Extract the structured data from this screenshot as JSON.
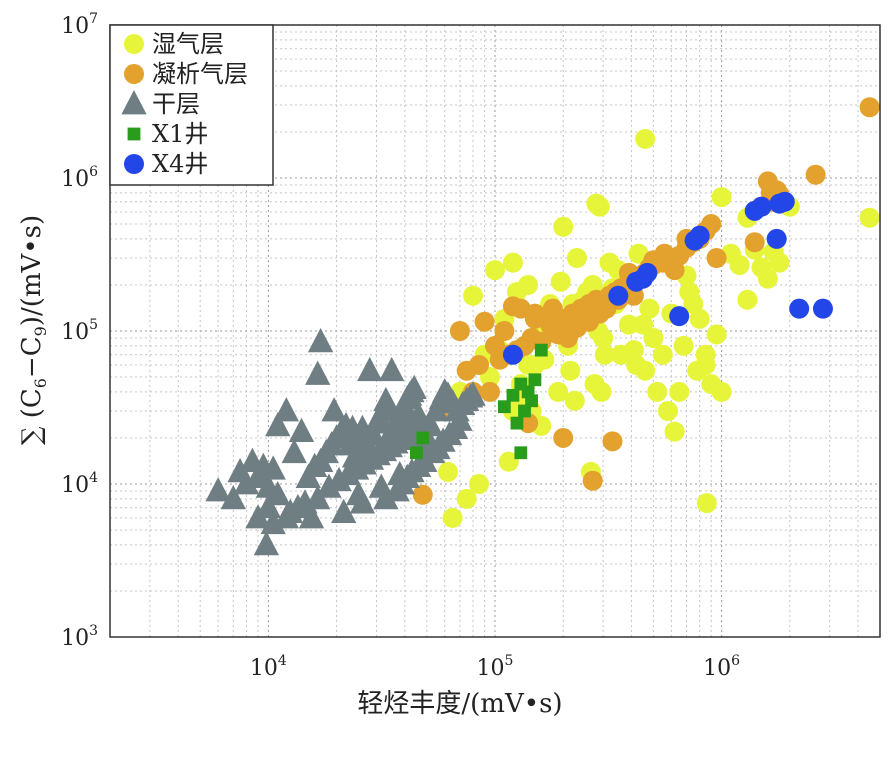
{
  "chart_data": {
    "type": "scatter",
    "title": "",
    "xlabel": "轻烃丰度/(mV•s)",
    "ylabel_parts": {
      "prefix": "∑ (C",
      "sub1": "6",
      "dash": "−C",
      "sub2": "9",
      "suffix": ")/(mV•s)"
    },
    "x_scale": "log",
    "y_scale": "log",
    "xlim": [
      2000,
      5000000
    ],
    "ylim": [
      1000,
      10000000
    ],
    "x_ticks": [
      {
        "base": "10",
        "exp": "4"
      },
      {
        "base": "10",
        "exp": "5"
      },
      {
        "base": "10",
        "exp": "6"
      }
    ],
    "x_tick_values": [
      10000,
      100000,
      1000000
    ],
    "y_ticks": [
      {
        "base": "10",
        "exp": "3"
      },
      {
        "base": "10",
        "exp": "4"
      },
      {
        "base": "10",
        "exp": "5"
      },
      {
        "base": "10",
        "exp": "6"
      },
      {
        "base": "10",
        "exp": "7"
      }
    ],
    "y_tick_values": [
      1000,
      10000,
      100000,
      1000000,
      10000000
    ],
    "grid": true,
    "legend_position": "top-left",
    "series": [
      {
        "name": "湿气层",
        "marker": "circle",
        "color": "#e6f53a",
        "x": [
          62000,
          70000,
          80000,
          90000,
          100000,
          110000,
          120000,
          130000,
          140000,
          150000,
          160000,
          170000,
          180000,
          190000,
          200000,
          210000,
          220000,
          230000,
          250000,
          270000,
          290000,
          300000,
          320000,
          340000,
          360000,
          380000,
          400000,
          420000,
          450000,
          480000,
          500000,
          550000,
          600000,
          650000,
          700000,
          750000,
          800000,
          850000,
          900000,
          950000,
          1000000,
          1100000,
          1200000,
          1300000,
          1400000,
          1500000,
          1600000,
          1700000,
          1800000,
          2000000,
          4500000,
          95000,
          105000,
          115000,
          125000,
          135000,
          145000,
          155000,
          165000,
          175000,
          185000,
          195000,
          205000,
          215000,
          225000,
          235000,
          245000,
          255000,
          265000,
          275000,
          285000,
          295000,
          305000,
          330000,
          350000,
          370000,
          390000,
          410000,
          430000,
          460000,
          520000,
          580000,
          620000,
          680000,
          720000,
          780000,
          850000,
          65000,
          75000,
          85000,
          160000,
          120000,
          140000,
          280000,
          460000,
          1000000,
          860000,
          1300000
        ],
        "y": [
          12000,
          40000,
          170000,
          70000,
          250000,
          120000,
          280000,
          45000,
          200000,
          60000,
          110000,
          95000,
          130000,
          40000,
          480000,
          80000,
          150000,
          300000,
          120000,
          200000,
          650000,
          90000,
          280000,
          150000,
          70000,
          220000,
          180000,
          60000,
          110000,
          140000,
          90000,
          70000,
          130000,
          40000,
          230000,
          150000,
          120000,
          60000,
          45000,
          95000,
          750000,
          320000,
          270000,
          550000,
          340000,
          260000,
          220000,
          330000,
          280000,
          650000,
          550000,
          50000,
          75000,
          14000,
          180000,
          35000,
          30000,
          90000,
          65000,
          150000,
          120000,
          210000,
          100000,
          55000,
          35000,
          130000,
          160000,
          180000,
          12000,
          45000,
          100000,
          40000,
          70000,
          190000,
          250000,
          170000,
          110000,
          75000,
          320000,
          55000,
          40000,
          30000,
          22000,
          80000,
          180000,
          55000,
          70000,
          6000,
          8000,
          10000,
          24000,
          30000,
          60000,
          680000,
          1800000,
          40000,
          7500,
          160000
        ]
      },
      {
        "name": "凝析气层",
        "marker": "circle",
        "color": "#e3a12e",
        "x": [
          48000,
          62000,
          75000,
          85000,
          95000,
          105000,
          115000,
          125000,
          135000,
          145000,
          160000,
          175000,
          190000,
          200000,
          210000,
          220000,
          230000,
          240000,
          250000,
          260000,
          270000,
          280000,
          300000,
          320000,
          340000,
          360000,
          380000,
          400000,
          420000,
          440000,
          460000,
          480000,
          500000,
          550000,
          600000,
          650000,
          700000,
          750000,
          800000,
          850000,
          900000,
          1500000,
          1600000,
          1700000,
          1800000,
          2600000,
          4500000,
          330000,
          270000,
          200000,
          180000,
          150000,
          140000,
          130000,
          120000,
          110000,
          100000,
          90000,
          80000,
          70000,
          150000,
          170000,
          210000,
          230000,
          260000,
          290000,
          310000,
          350000,
          390000,
          410000,
          500000,
          560000,
          620000,
          700000,
          950000,
          1400000,
          1650000,
          1750000
        ],
        "y": [
          8500,
          30000,
          55000,
          60000,
          40000,
          65000,
          70000,
          75000,
          80000,
          90000,
          85000,
          110000,
          95000,
          120000,
          110000,
          130000,
          115000,
          140000,
          125000,
          150000,
          135000,
          160000,
          155000,
          170000,
          180000,
          190000,
          200000,
          210000,
          220000,
          230000,
          240000,
          260000,
          270000,
          280000,
          300000,
          310000,
          350000,
          380000,
          400000,
          450000,
          500000,
          650000,
          950000,
          700000,
          780000,
          1050000,
          2900000,
          19000,
          10500,
          20000,
          140000,
          120000,
          25000,
          140000,
          145000,
          100000,
          80000,
          115000,
          40000,
          100000,
          130000,
          120000,
          90000,
          105000,
          115000,
          130000,
          140000,
          160000,
          240000,
          170000,
          290000,
          320000,
          250000,
          400000,
          300000,
          380000,
          800000,
          830000
        ]
      },
      {
        "name": "干层",
        "marker": "triangle",
        "color": "#6f7e83",
        "x": [
          6000,
          7000,
          7500,
          8000,
          8500,
          9000,
          9500,
          10000,
          10500,
          11000,
          12000,
          13000,
          14000,
          15000,
          16000,
          17000,
          18000,
          19000,
          20000,
          21000,
          22000,
          23000,
          24000,
          25000,
          26000,
          27000,
          28000,
          29000,
          30000,
          31000,
          32000,
          33000,
          34000,
          35000,
          36000,
          37000,
          38000,
          39000,
          40000,
          41000,
          42000,
          43000,
          44000,
          45000,
          46000,
          47000,
          48000,
          50000,
          52000,
          55000,
          58000,
          60000,
          62000,
          65000,
          68000,
          70000,
          72000,
          75000,
          78000,
          80000,
          9000,
          10000,
          11000,
          12500,
          14500,
          16500,
          18500,
          20500,
          22500,
          24500,
          26500,
          28500,
          30500,
          32500,
          34500,
          36500,
          38500,
          40500,
          42500,
          44500,
          9800,
          17000,
          28000,
          35000,
          16500,
          19500,
          23500,
          26000,
          33000,
          37000,
          39000,
          41000,
          43000,
          46000,
          49000,
          53000,
          56000,
          59000,
          63000,
          67000,
          15500,
          13500,
          12000,
          10500,
          21500,
          25000,
          31500,
          38000
        ],
        "y": [
          9000,
          8000,
          12000,
          10000,
          14000,
          11000,
          13000,
          9500,
          12500,
          24000,
          30000,
          16000,
          22000,
          11000,
          13000,
          14000,
          16000,
          18000,
          20000,
          22000,
          24000,
          18000,
          15000,
          20000,
          23000,
          19000,
          17000,
          21000,
          25000,
          27000,
          30000,
          35000,
          32000,
          22000,
          24000,
          26000,
          28000,
          30000,
          32000,
          36000,
          38000,
          40000,
          42000,
          26000,
          28000,
          21000,
          18000,
          20000,
          24000,
          30000,
          36000,
          40000,
          38000,
          34000,
          30000,
          26000,
          33000,
          35000,
          37000,
          38000,
          6000,
          7000,
          8500,
          6500,
          7500,
          8000,
          9500,
          10500,
          11500,
          12500,
          13500,
          14500,
          15500,
          16500,
          17500,
          18500,
          19500,
          20500,
          21500,
          22500,
          4000,
          85000,
          55000,
          55000,
          52000,
          30000,
          23000,
          7500,
          8000,
          9000,
          10000,
          11000,
          12000,
          13000,
          14000,
          16000,
          17000,
          19000,
          21000,
          23000,
          6000,
          7000,
          6000,
          5500,
          6500,
          8500,
          9500,
          11500
        ]
      },
      {
        "name": "X1井",
        "marker": "square",
        "color": "#2a9c1c",
        "x": [
          45000,
          48000,
          110000,
          120000,
          125000,
          130000,
          135000,
          140000,
          145000,
          150000,
          160000,
          130000
        ],
        "y": [
          16000,
          20000,
          32000,
          38000,
          25000,
          45000,
          30000,
          40000,
          35000,
          48000,
          75000,
          16000
        ]
      },
      {
        "name": "X4井",
        "marker": "circle",
        "color": "#2346e8",
        "x": [
          120000,
          350000,
          420000,
          450000,
          470000,
          650000,
          760000,
          800000,
          1400000,
          1500000,
          1800000,
          1900000,
          1750000,
          2200000,
          2800000
        ],
        "y": [
          70000,
          170000,
          210000,
          220000,
          240000,
          125000,
          390000,
          420000,
          610000,
          650000,
          680000,
          700000,
          400000,
          140000,
          140000
        ]
      }
    ]
  }
}
